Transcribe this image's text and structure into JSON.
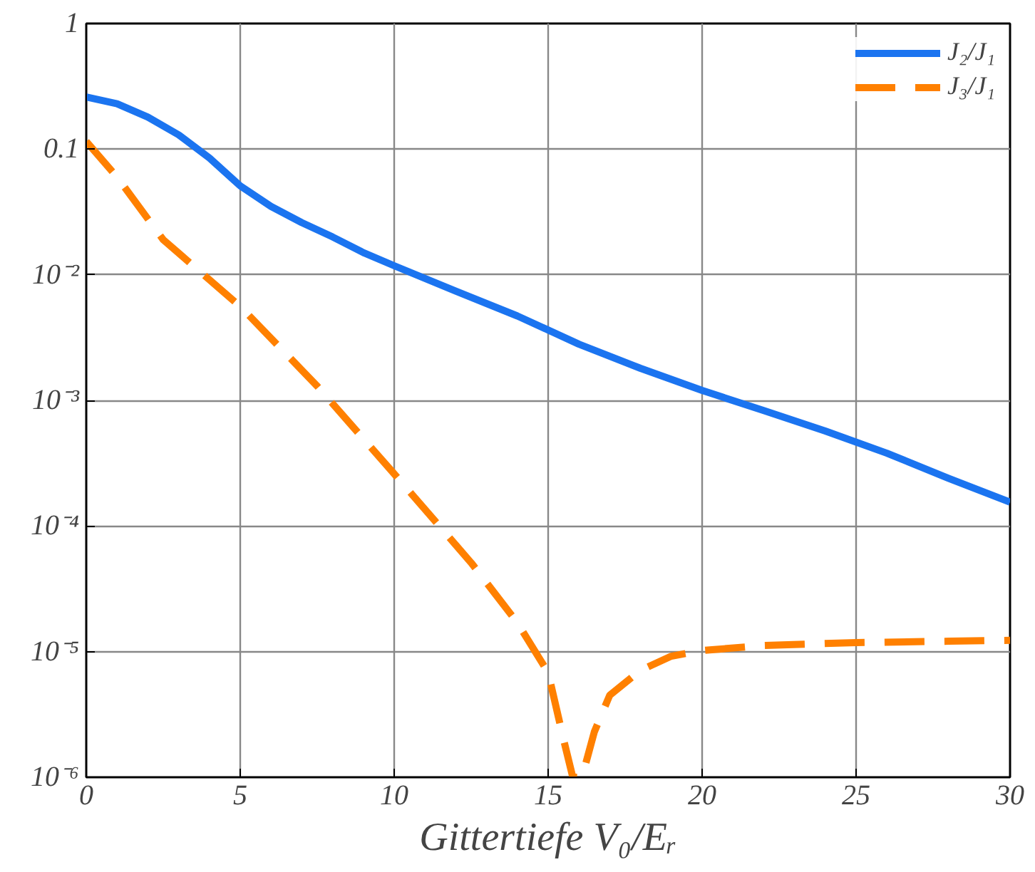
{
  "chart_data": {
    "type": "line",
    "xlabel": "Gittertiefe V₀/Eᵣ",
    "log": "y",
    "grid": true,
    "legend": "top right",
    "xlim": [
      0,
      30
    ],
    "xticks": [
      0,
      5,
      10,
      15,
      20,
      25,
      30
    ],
    "ylim": [
      1e-06,
      1
    ],
    "yticks": [
      {
        "value": 1,
        "label": "1"
      },
      {
        "value": 0.1,
        "label": "0.1"
      },
      {
        "value": 0.01,
        "label": "10⁻²"
      },
      {
        "value": 0.001,
        "label": "10⁻³"
      },
      {
        "value": 0.0001,
        "label": "10⁻⁴"
      },
      {
        "value": 1e-05,
        "label": "10⁻⁵"
      },
      {
        "value": 1e-06,
        "label": "10⁻⁶"
      }
    ],
    "series": [
      {
        "name": "J₂/J₁",
        "color": "#1b74f0",
        "line_style": "solid",
        "x": [
          0,
          1,
          2,
          3,
          4,
          5,
          6,
          7,
          8,
          9,
          10,
          12,
          14,
          16,
          18,
          20,
          22,
          24,
          26,
          28,
          30
        ],
        "values": [
          0.26,
          0.23,
          0.18,
          0.13,
          0.085,
          0.051,
          0.035,
          0.026,
          0.02,
          0.015,
          0.0118,
          0.0074,
          0.0047,
          0.0028,
          0.0018,
          0.0012,
          0.00083,
          0.00057,
          0.00038,
          0.00024,
          0.000155
        ]
      },
      {
        "name": "J₃/J₁",
        "color": "#ff8000",
        "line_style": "dashed",
        "x": [
          0,
          1,
          2.5,
          5,
          7.5,
          10,
          12.5,
          14,
          15,
          15.5,
          15.8,
          16.1,
          16.5,
          17,
          18,
          19,
          20,
          22,
          25,
          28,
          30
        ],
        "values": [
          0.115,
          0.06,
          0.019,
          0.0056,
          0.0013,
          0.00026,
          5.1e-05,
          1.7e-05,
          6.8e-06,
          2e-06,
          1e-06,
          1e-06,
          2.3e-06,
          4.5e-06,
          7.1e-06,
          9.2e-06,
          1.02e-05,
          1.12e-05,
          1.18e-05,
          1.21e-05,
          1.23e-05
        ]
      }
    ]
  }
}
